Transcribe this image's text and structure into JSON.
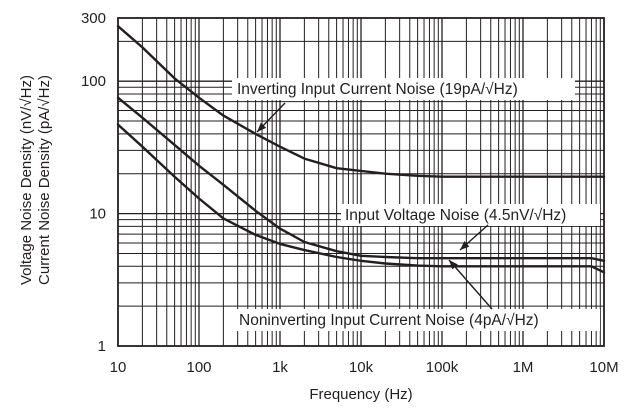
{
  "chart_data": {
    "type": "line",
    "x_scale": "log",
    "y_scale": "log",
    "xlim": [
      10,
      10000000
    ],
    "ylim": [
      1,
      300
    ],
    "grid": true,
    "xlabel": "Frequency (Hz)",
    "ylabel": [
      "Voltage Noise Density (nV/√Hz)",
      "Current Noise Density (pA/√Hz)"
    ],
    "x_ticks": [
      {
        "value": 10,
        "label": "10"
      },
      {
        "value": 100,
        "label": "100"
      },
      {
        "value": 1000,
        "label": "1k"
      },
      {
        "value": 10000,
        "label": "10k"
      },
      {
        "value": 100000,
        "label": "100k"
      },
      {
        "value": 1000000,
        "label": "1M"
      },
      {
        "value": 10000000,
        "label": "10M"
      }
    ],
    "y_ticks": [
      {
        "value": 1,
        "label": "1"
      },
      {
        "value": 10,
        "label": "10"
      },
      {
        "value": 100,
        "label": "100"
      },
      {
        "value": 300,
        "label": "300"
      }
    ],
    "series": [
      {
        "name": "Inverting Input Current Noise",
        "annotation": "Inverting Input Current Noise (19pA/√Hz)",
        "x": [
          10,
          20,
          50,
          100,
          200,
          500,
          1000,
          2000,
          5000,
          10000,
          20000,
          50000,
          100000,
          1000000,
          10000000
        ],
        "y": [
          260,
          180,
          105,
          75,
          55,
          40,
          32,
          26,
          22,
          21,
          20,
          19.3,
          19,
          19,
          19
        ]
      },
      {
        "name": "Input Voltage Noise",
        "annotation": "Input Voltage Noise (4.5nV/√Hz)",
        "x": [
          10,
          20,
          50,
          100,
          200,
          500,
          1000,
          2000,
          5000,
          10000,
          20000,
          50000,
          100000,
          1000000,
          7000000,
          10000000
        ],
        "y": [
          75,
          53,
          33,
          23,
          16.5,
          10.5,
          7.7,
          6.1,
          5.2,
          4.8,
          4.7,
          4.6,
          4.6,
          4.6,
          4.6,
          4.4
        ]
      },
      {
        "name": "Noninverting Input Current Noise",
        "annotation": "Noninverting Input Current Noise (4pA/√Hz)",
        "x": [
          10,
          20,
          50,
          100,
          200,
          500,
          1000,
          2000,
          5000,
          10000,
          20000,
          50000,
          100000,
          1000000,
          7000000,
          10000000
        ],
        "y": [
          47,
          32,
          19,
          13,
          9.2,
          6.9,
          5.9,
          5.3,
          4.7,
          4.4,
          4.2,
          4.05,
          4,
          4,
          4,
          3.6
        ]
      }
    ]
  }
}
